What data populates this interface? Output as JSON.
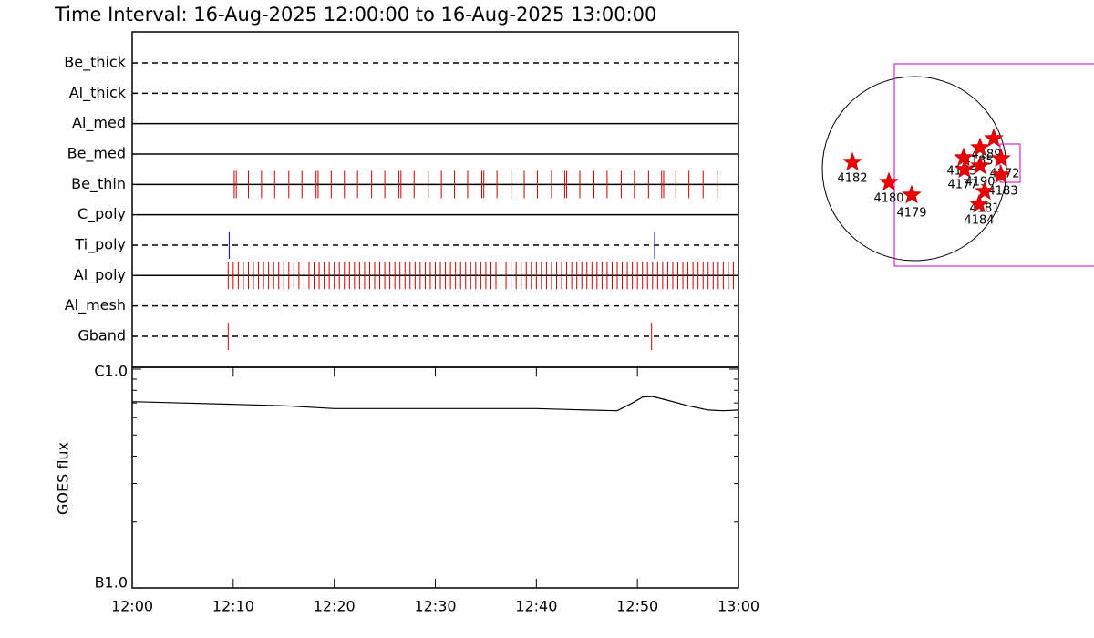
{
  "chart_data": [
    {
      "type": "timeline",
      "title": "Time Interval: 16-Aug-2025 12:00:00 to 16-Aug-2025 13:00:00",
      "xlim": [
        0,
        60
      ],
      "rows": [
        {
          "name": "Be_thick",
          "style": "dashed",
          "color": "#000000",
          "events": []
        },
        {
          "name": "Al_thick",
          "style": "dashed",
          "color": "#000000",
          "events": []
        },
        {
          "name": "Al_med",
          "style": "solid",
          "color": "#000000",
          "events": []
        },
        {
          "name": "Be_med",
          "style": "solid",
          "color": "#000000",
          "events": []
        },
        {
          "name": "Be_thin",
          "style": "solid",
          "color": "#cc0000",
          "events": [
            10.1,
            10.3,
            11.5,
            12.8,
            14.1,
            15.5,
            16.8,
            18.2,
            18.4,
            19.7,
            21,
            22.3,
            23.7,
            25,
            26.4,
            26.6,
            27.9,
            29.3,
            30.6,
            31.9,
            33.2,
            34.6,
            34.8,
            36.1,
            37.5,
            38.8,
            40.1,
            41.5,
            42.8,
            43.0,
            44.3,
            45.7,
            47.0,
            48.4,
            49.7,
            51.1,
            52.4,
            52.6,
            53.8,
            55.1,
            56.5,
            57.9
          ]
        },
        {
          "name": "C_poly",
          "style": "solid",
          "color": "#000000",
          "events": []
        },
        {
          "name": "Ti_poly",
          "style": "dashed",
          "color": "#0000cc",
          "events": [
            9.6,
            51.7
          ]
        },
        {
          "name": "Al_poly",
          "style": "solid",
          "color": "#cc0000",
          "events": [
            9.5,
            10,
            10.5,
            11,
            11.5,
            12,
            12.5,
            13,
            13.5,
            14,
            14.5,
            15,
            15.5,
            16,
            16.5,
            17,
            17.5,
            18,
            18.5,
            19,
            19.5,
            20,
            20.5,
            21,
            21.5,
            22,
            22.5,
            23,
            23.5,
            24,
            24.5,
            25,
            25.5,
            26,
            26.5,
            27,
            27.5,
            28,
            28.5,
            29,
            29.5,
            30,
            30.5,
            31,
            31.5,
            32,
            32.5,
            33,
            33.5,
            34,
            34.5,
            35,
            35.5,
            36,
            36.5,
            37,
            37.5,
            38,
            38.5,
            39,
            39.5,
            40,
            40.5,
            41,
            41.5,
            42,
            42.5,
            43,
            43.5,
            44,
            44.5,
            45,
            45.5,
            46,
            46.5,
            47,
            47.5,
            48,
            48.5,
            49,
            49.5,
            50,
            50.5,
            51,
            51.5,
            52,
            52.5,
            53,
            53.5,
            54,
            54.5,
            55,
            55.5,
            56,
            56.5,
            57,
            57.5,
            58,
            58.5,
            59,
            59.5
          ]
        },
        {
          "name": "Al_mesh",
          "style": "dashed",
          "color": "#000000",
          "events": []
        },
        {
          "name": "Gband",
          "style": "dashed",
          "color": "#cc0000",
          "events": [
            9.5,
            51.4
          ]
        }
      ]
    },
    {
      "type": "line",
      "ylabel": "GOES flux",
      "log_y": true,
      "color": "#000000",
      "x": [
        0,
        5,
        10,
        15,
        20,
        25,
        30,
        35,
        40,
        45,
        48,
        49.5,
        50.5,
        51.5,
        53,
        55,
        57,
        58.5,
        60
      ],
      "values": [
        7.1e-07,
        7e-07,
        6.9e-07,
        6.8e-07,
        6.6e-07,
        6.6e-07,
        6.6e-07,
        6.6e-07,
        6.6e-07,
        6.5e-07,
        6.45e-07,
        7e-07,
        7.45e-07,
        7.5e-07,
        7.2e-07,
        6.8e-07,
        6.5e-07,
        6.45e-07,
        6.5e-07
      ],
      "xlim": [
        0,
        60
      ],
      "xticks": [
        {
          "value": 0,
          "label": "12:00"
        },
        {
          "value": 10,
          "label": "12:10"
        },
        {
          "value": 20,
          "label": "12:20"
        },
        {
          "value": 30,
          "label": "12:30"
        },
        {
          "value": 40,
          "label": "12:40"
        },
        {
          "value": 50,
          "label": "12:50"
        },
        {
          "value": 60,
          "label": "13:00"
        }
      ],
      "ylim": [
        1e-07,
        1e-06
      ],
      "yticks": [
        {
          "value": 1e-07,
          "label": "B1.0"
        },
        {
          "value": 1e-06,
          "label": "C1.0"
        }
      ],
      "yminor_ticks": [
        2e-07,
        3e-07,
        4e-07,
        5e-07,
        6e-07,
        7e-07,
        8e-07,
        9e-07
      ]
    }
  ],
  "sun_map": {
    "regions": [
      "4182",
      "4180",
      "4179",
      "4189",
      "4185",
      "4175",
      "4177",
      "4190",
      "4172",
      "4183",
      "4181",
      "4184"
    ]
  }
}
